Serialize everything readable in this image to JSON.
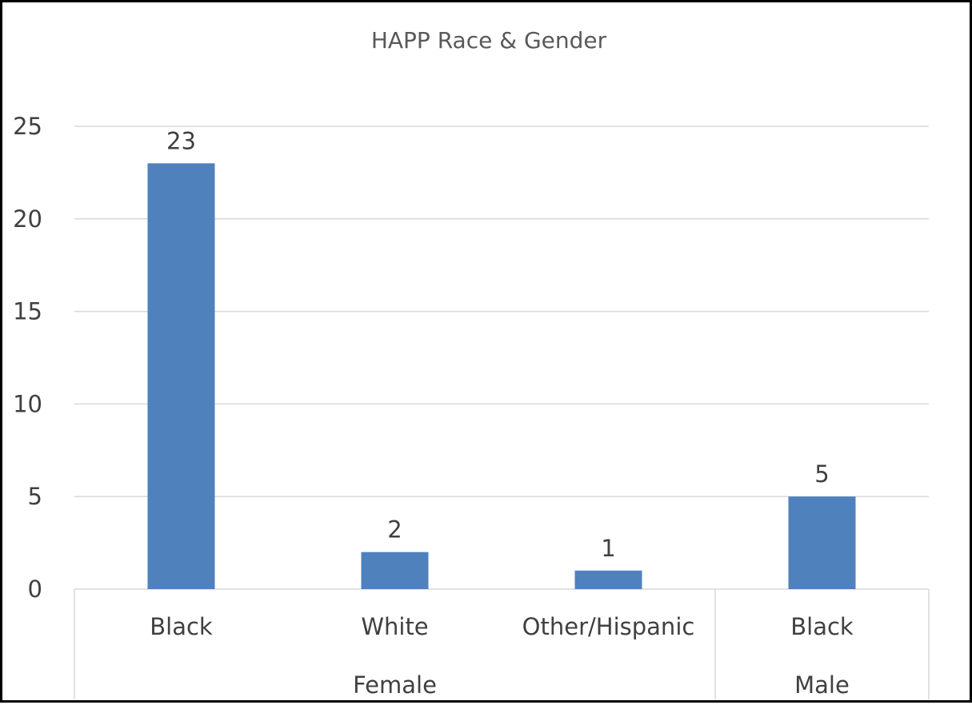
{
  "chart_data": {
    "type": "bar",
    "title": "HAPP Race & Gender",
    "categories": [
      "Black",
      "White",
      "Other/Hispanic",
      "Black"
    ],
    "groups": [
      {
        "label": "Female",
        "categories": [
          "Black",
          "White",
          "Other/Hispanic"
        ]
      },
      {
        "label": "Male",
        "categories": [
          "Black"
        ]
      }
    ],
    "series": [
      {
        "values": [
          23,
          2,
          1,
          5
        ],
        "color": "#4f81bd"
      }
    ],
    "data_labels": [
      "23",
      "2",
      "1",
      "5"
    ],
    "ylim": [
      0,
      25
    ],
    "yticks": [
      0,
      5,
      10,
      15,
      20,
      25
    ],
    "ytick_labels": [
      "0",
      "5",
      "10",
      "15",
      "20",
      "25"
    ],
    "grid": true,
    "gridline_color": "#d9d9d9",
    "legend": "none"
  }
}
